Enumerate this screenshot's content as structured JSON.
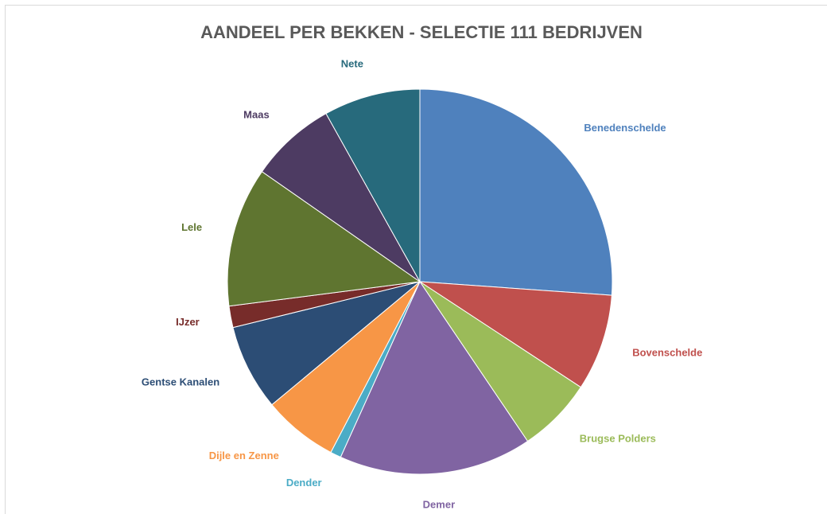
{
  "chart_data": {
    "type": "pie",
    "title": "AANDEEL PER BEKKEN - SELECTIE 111 BEDRIJVEN",
    "categories": [
      "Benedenschelde",
      "Bovenschelde",
      "Brugse Polders",
      "Demer",
      "Dender",
      "Dijle en Zenne",
      "Gentse Kanalen",
      "IJzer",
      "Lele",
      "Maas",
      "Nete"
    ],
    "values": [
      29,
      9,
      7,
      18,
      1,
      7,
      8,
      2,
      13,
      8,
      9
    ],
    "colors": [
      "#4f81bd",
      "#c0504d",
      "#9bbb59",
      "#8064a2",
      "#4bacc6",
      "#f79646",
      "#2c4d75",
      "#772c2a",
      "#5f7530",
      "#4d3b62",
      "#276a7c"
    ]
  }
}
